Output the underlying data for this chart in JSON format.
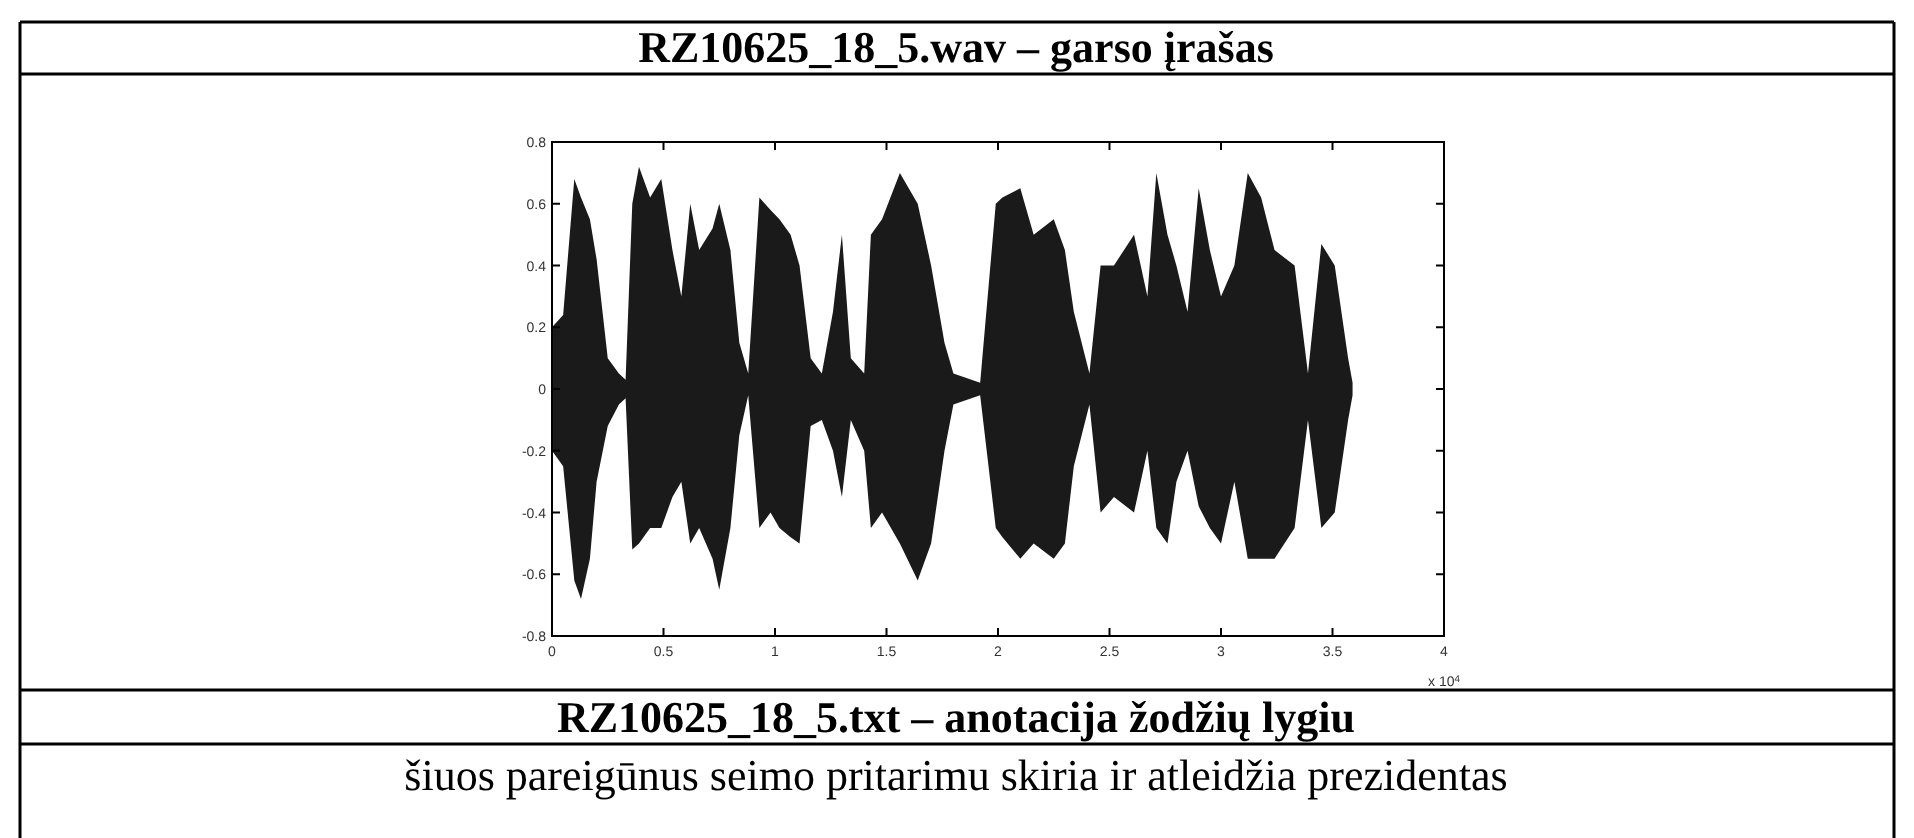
{
  "chart_data": {
    "type": "area",
    "title": "RZ10625_18_5.wav – garso įrašas",
    "annotations": [
      "x 10$^{4}$",
      "RZ10625_18_5.txt – anotacija žodžių lygiu",
      "šiuos pareigūnus seimo pritarimu skiria ir atleidžia prezidentas"
    ],
    "x": [
      0,
      0.05,
      0.1,
      0.13,
      0.17,
      0.2,
      0.25,
      0.3,
      0.33,
      0.36,
      0.39,
      0.44,
      0.49,
      0.54,
      0.58,
      0.62,
      0.66,
      0.72,
      0.75,
      0.8,
      0.84,
      0.88,
      0.93,
      0.98,
      1.02,
      1.07,
      1.11,
      1.16,
      1.21,
      1.26,
      1.3,
      1.34,
      1.4,
      1.43,
      1.48,
      1.56,
      1.64,
      1.7,
      1.76,
      1.8,
      1.92,
      1.99,
      2.02,
      2.1,
      2.16,
      2.25,
      2.3,
      2.34,
      2.41,
      2.46,
      2.52,
      2.61,
      2.67,
      2.71,
      2.76,
      2.8,
      2.85,
      2.9,
      2.95,
      3,
      3.06,
      3.12,
      3.18,
      3.24,
      3.33,
      3.39,
      3.45,
      3.51,
      3.57,
      3.59
    ],
    "series": [
      {
        "color": "#1a1a1a",
        "values": [
          0.2,
          0.24,
          0.68,
          0.62,
          0.55,
          0.42,
          0.1,
          0.05,
          0.03,
          0.6,
          0.72,
          0.62,
          0.68,
          0.45,
          0.3,
          0.6,
          0.45,
          0.52,
          0.6,
          0.45,
          0.15,
          0.05,
          0.62,
          0.58,
          0.55,
          0.5,
          0.4,
          0.1,
          0.05,
          0.25,
          0.5,
          0.1,
          0.05,
          0.5,
          0.55,
          0.7,
          0.6,
          0.4,
          0.15,
          0.05,
          0.02,
          0.6,
          0.62,
          0.65,
          0.5,
          0.55,
          0.45,
          0.25,
          0.05,
          0.4,
          0.4,
          0.5,
          0.3,
          0.7,
          0.5,
          0.4,
          0.25,
          0.65,
          0.45,
          0.3,
          0.4,
          0.7,
          0.62,
          0.45,
          0.4,
          0.05,
          0.47,
          0.4,
          0.1,
          0.02
        ]
      },
      {
        "color": "#1a1a1a",
        "values": [
          -0.2,
          -0.25,
          -0.62,
          -0.68,
          -0.55,
          -0.3,
          -0.12,
          -0.05,
          -0.03,
          -0.52,
          -0.5,
          -0.45,
          -0.45,
          -0.35,
          -0.3,
          -0.5,
          -0.45,
          -0.55,
          -0.65,
          -0.45,
          -0.15,
          -0.02,
          -0.45,
          -0.4,
          -0.45,
          -0.48,
          -0.5,
          -0.12,
          -0.1,
          -0.2,
          -0.35,
          -0.1,
          -0.2,
          -0.45,
          -0.4,
          -0.5,
          -0.62,
          -0.5,
          -0.2,
          -0.05,
          -0.02,
          -0.45,
          -0.48,
          -0.55,
          -0.5,
          -0.55,
          -0.5,
          -0.25,
          -0.05,
          -0.4,
          -0.35,
          -0.4,
          -0.2,
          -0.45,
          -0.5,
          -0.3,
          -0.2,
          -0.38,
          -0.45,
          -0.5,
          -0.3,
          -0.55,
          -0.55,
          -0.55,
          -0.45,
          -0.1,
          -0.45,
          -0.4,
          -0.1,
          -0.02
        ]
      }
    ],
    "xlim": [
      0,
      4
    ],
    "xticks": [
      0,
      0.5,
      1,
      1.5,
      2,
      2.5,
      3,
      3.5,
      4
    ],
    "ylim": [
      -0.8,
      0.8
    ],
    "yticks": [
      -0.8,
      -0.6,
      -0.4,
      -0.2,
      0,
      0.2,
      0.4,
      0.6,
      0.8
    ]
  }
}
